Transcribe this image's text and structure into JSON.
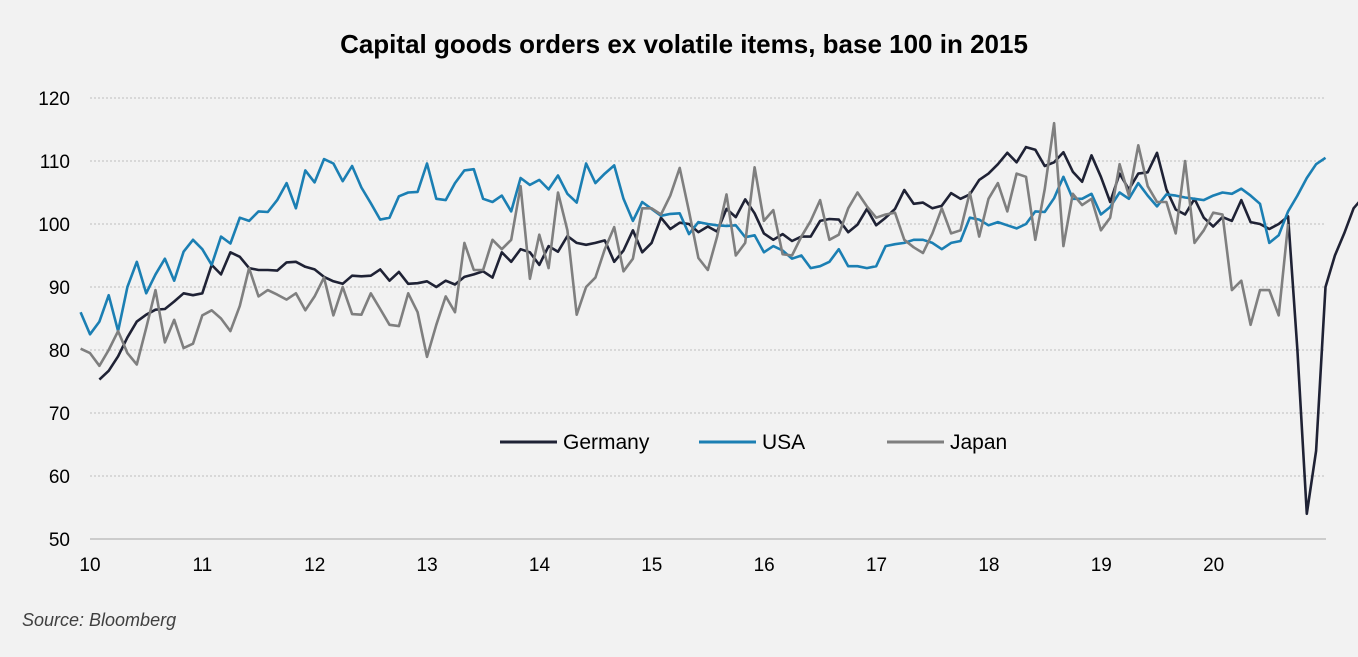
{
  "chart_data": {
    "type": "line",
    "title": "Capital goods orders ex volatile items, base 100 in 2015",
    "source": "Source: Bloomberg",
    "xlim": [
      10,
      21
    ],
    "ylim": [
      50,
      120
    ],
    "x_ticks": [
      "10",
      "11",
      "12",
      "13",
      "14",
      "15",
      "16",
      "17",
      "18",
      "19",
      "20"
    ],
    "y_ticks": [
      "50",
      "60",
      "70",
      "80",
      "90",
      "100",
      "110",
      "120"
    ],
    "grid": "horizontal dotted",
    "legend_position": "center",
    "series": [
      {
        "name": "Germany",
        "color": "#1f2235",
        "x_start": 10.0833,
        "x_step": 0.0833,
        "values": [
          75.3,
          76.7,
          79.0,
          82.0,
          84.5,
          85.6,
          86.4,
          86.5,
          87.7,
          89.0,
          88.7,
          89.0,
          93.5,
          92.0,
          95.5,
          94.8,
          93.0,
          92.7,
          92.7,
          92.6,
          93.9,
          94.0,
          93.2,
          92.8,
          91.6,
          90.9,
          90.5,
          91.8,
          91.7,
          91.8,
          92.8,
          91.0,
          92.4,
          90.5,
          90.6,
          90.9,
          90.0,
          91.0,
          90.4,
          91.6,
          92.0,
          92.5,
          91.5,
          95.5,
          94.0,
          96.0,
          95.5,
          93.5,
          96.5,
          95.6,
          98.1,
          97.0,
          96.7,
          97.0,
          97.4,
          94.0,
          95.8,
          99.0,
          95.5,
          97.0,
          101.0,
          99.2,
          100.2,
          100.0,
          98.7,
          99.6,
          98.8,
          102.4,
          101.1,
          103.9,
          101.7,
          98.5,
          97.5,
          98.4,
          97.3,
          98.0,
          98.0,
          100.5,
          100.8,
          100.7,
          98.7,
          99.9,
          102.4,
          99.8,
          101.0,
          102.4,
          105.4,
          103.2,
          103.4,
          102.5,
          102.9,
          104.9,
          104.0,
          104.7,
          107.0,
          108.0,
          109.5,
          111.3,
          109.8,
          112.2,
          111.8,
          109.2,
          109.8,
          111.4,
          108.3,
          106.7,
          110.9,
          107.5,
          103.5,
          108.0,
          105.5,
          108.0,
          108.2,
          111.3,
          105.5,
          102.3,
          101.5,
          104.0,
          101.0,
          99.6,
          101.1,
          100.5,
          103.8,
          100.3,
          100.0,
          99.2,
          100.0,
          101.2,
          80.0,
          54.0,
          64.0,
          90.0,
          95.0,
          98.5,
          102.5,
          104.2
        ]
      },
      {
        "name": "USA",
        "color": "#1b7fb3",
        "x_start": 9.9167,
        "x_step": 0.0833,
        "values": [
          86.0,
          82.5,
          84.5,
          88.7,
          83.0,
          90.0,
          94.0,
          89.0,
          92.0,
          94.5,
          91.0,
          95.6,
          97.5,
          96.0,
          93.5,
          98.0,
          96.9,
          101.0,
          100.5,
          102.0,
          101.9,
          103.8,
          106.5,
          102.5,
          108.5,
          106.6,
          110.3,
          109.6,
          106.8,
          109.2,
          105.8,
          103.3,
          100.7,
          101.0,
          104.4,
          105.0,
          105.1,
          109.6,
          104.0,
          103.8,
          106.5,
          108.5,
          108.7,
          104.0,
          103.5,
          104.5,
          102.0,
          107.3,
          106.2,
          107.0,
          105.5,
          107.7,
          104.8,
          103.4,
          109.6,
          106.5,
          108.0,
          109.3,
          104.0,
          100.5,
          103.5,
          102.4,
          101.3,
          101.6,
          101.7,
          98.4,
          100.3,
          100.0,
          99.8,
          99.7,
          99.8,
          97.9,
          98.2,
          95.5,
          96.5,
          95.8,
          94.5,
          95.0,
          93.0,
          93.3,
          94.0,
          96.0,
          93.3,
          93.3,
          93.0,
          93.3,
          96.5,
          96.8,
          97.0,
          97.5,
          97.5,
          97.0,
          96.0,
          97.0,
          97.3,
          101.0,
          100.7,
          99.8,
          100.3,
          99.8,
          99.3,
          100.0,
          102.0,
          101.9,
          104.1,
          107.5,
          104.0,
          104.0,
          104.8,
          101.5,
          102.7,
          105.0,
          104.0,
          106.5,
          104.5,
          102.8,
          104.7,
          104.5,
          104.2,
          104.0,
          103.8,
          104.5,
          105.0,
          104.8,
          105.6,
          104.5,
          103.2,
          97.0,
          98.2,
          102.0,
          104.5,
          107.3,
          109.5,
          110.5
        ]
      },
      {
        "name": "Japan",
        "color": "#7f7f7f",
        "x_start": 9.9167,
        "x_step": 0.0833,
        "values": [
          80.2,
          79.5,
          77.5,
          80.0,
          83.0,
          79.5,
          77.7,
          83.5,
          89.5,
          81.2,
          84.8,
          80.3,
          81.0,
          85.5,
          86.3,
          85.0,
          83.0,
          87.0,
          93.0,
          88.5,
          89.5,
          88.8,
          88.0,
          89.0,
          86.3,
          88.5,
          91.5,
          85.5,
          90.0,
          85.7,
          85.6,
          89.0,
          86.5,
          84.0,
          83.8,
          89.0,
          86.0,
          78.9,
          84.0,
          88.5,
          86.0,
          97.0,
          92.7,
          92.7,
          97.5,
          96.0,
          97.5,
          106.0,
          91.3,
          98.3,
          93.0,
          105.0,
          99.0,
          85.6,
          90.0,
          91.5,
          96.0,
          99.5,
          92.5,
          94.5,
          102.5,
          102.5,
          101.5,
          104.5,
          108.9,
          102.0,
          94.6,
          92.7,
          98.0,
          104.7,
          95.0,
          97.0,
          109.0,
          100.5,
          102.2,
          95.2,
          95.0,
          98.0,
          100.5,
          103.8,
          97.5,
          98.3,
          102.5,
          105.0,
          102.8,
          101.0,
          101.5,
          101.8,
          97.5,
          96.3,
          95.4,
          98.5,
          102.5,
          98.5,
          99.0,
          105.0,
          98.0,
          104.0,
          106.5,
          102.0,
          108.0,
          107.5,
          97.5,
          105.5,
          116.0,
          96.5,
          104.8,
          103.0,
          104.0,
          99.0,
          101.0,
          109.5,
          104.5,
          112.5,
          106.0,
          103.5,
          103.5,
          98.5,
          110.0,
          97.0,
          99.0,
          101.8,
          101.5,
          89.5,
          91.0,
          84.0,
          89.5,
          89.5,
          85.5,
          100.0
        ]
      }
    ]
  }
}
